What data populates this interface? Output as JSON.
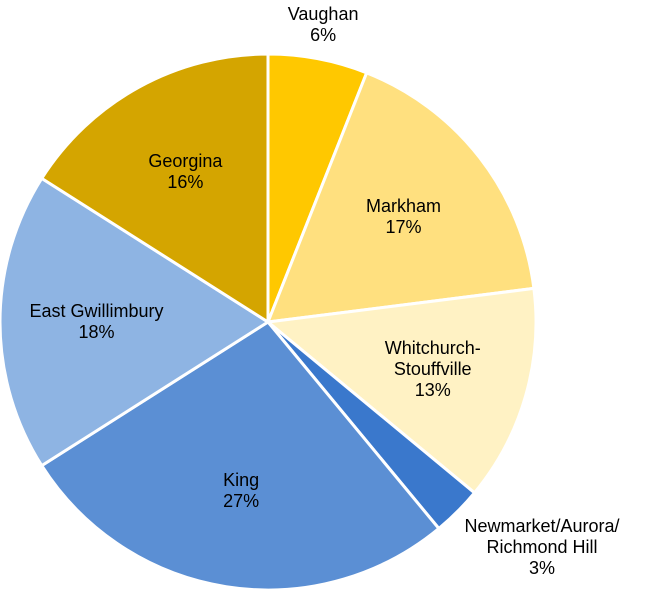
{
  "chart_data": {
    "type": "pie",
    "categories": [
      "Vaughan",
      "Markham",
      "Whitchurch-\nStouffville",
      "Newmarket/Aurora/\nRichmond Hill",
      "King",
      "East Gwillimbury",
      "Georgina"
    ],
    "values": [
      6,
      17,
      13,
      3,
      27,
      18,
      16
    ],
    "value_labels": [
      "6%",
      "17%",
      "13%",
      "3%",
      "27%",
      "18%",
      "16%"
    ],
    "colors": [
      "#ffc800",
      "#ffe07f",
      "#fff2c4",
      "#3a78cc",
      "#5b8fd4",
      "#8eb4e3",
      "#d4a500"
    ]
  }
}
